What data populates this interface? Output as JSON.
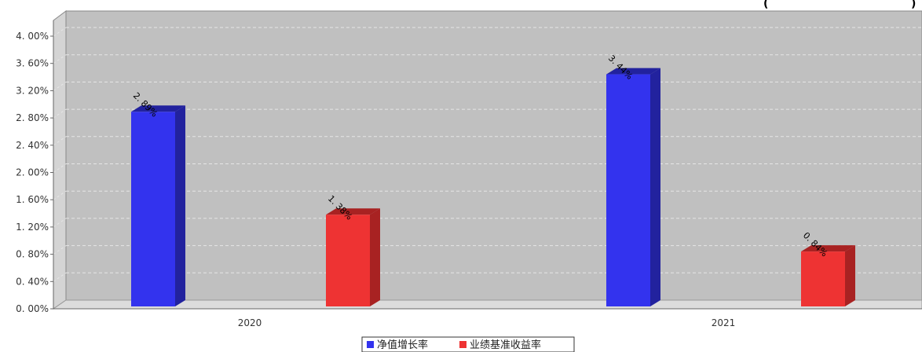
{
  "chart_data": {
    "type": "bar",
    "categories": [
      "2020",
      "2021"
    ],
    "series": [
      {
        "name": "净值增长率",
        "values": [
          2.89,
          3.44
        ],
        "color": "#3333ee",
        "side_color": "#22229e"
      },
      {
        "name": "业绩基准收益率",
        "values": [
          1.38,
          0.84
        ],
        "color": "#ee3333",
        "side_color": "#a82222"
      }
    ],
    "data_labels": [
      [
        "2. 89%",
        "3. 44%"
      ],
      [
        "1. 38%",
        "0. 84%"
      ]
    ],
    "yticks": [
      "0. 00%",
      "0. 40%",
      "0. 80%",
      "1. 20%",
      "1. 60%",
      "2. 00%",
      "2. 40%",
      "2. 80%",
      "3. 20%",
      "3. 60%",
      "4. 00%"
    ],
    "ylim": [
      0,
      4.0
    ],
    "grid": true,
    "legend_position": "bottom-center",
    "title": "",
    "xlabel": "",
    "ylabel": "",
    "corner_fragment": "(",
    "corner_fragment_end": ")",
    "colors": {
      "plot_bg": "#c0c0c0",
      "wall_side": "#d4d4d4",
      "floor": "#dcdcdc",
      "grid": "#e6e6e6"
    }
  }
}
